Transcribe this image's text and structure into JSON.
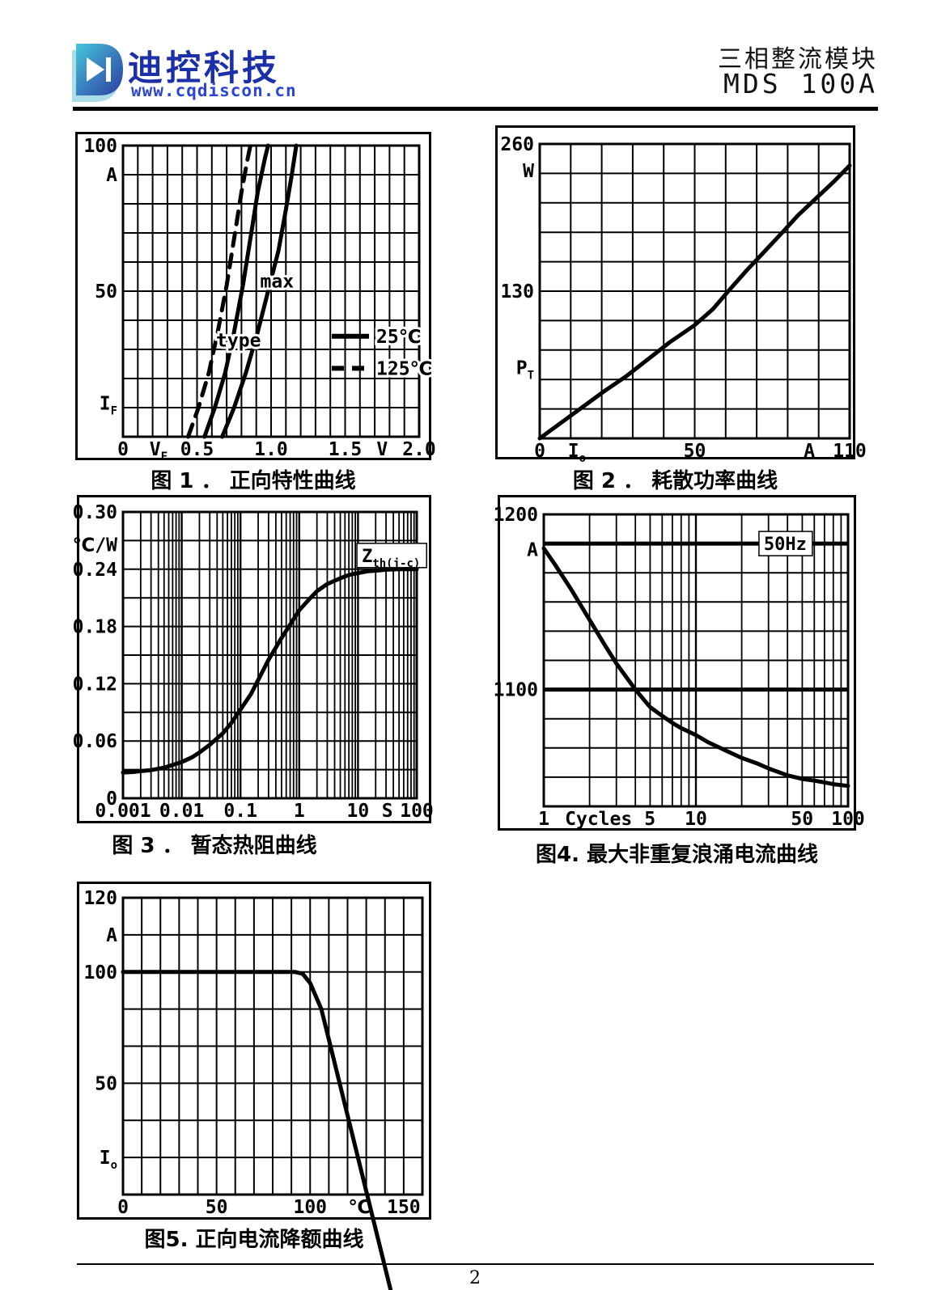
{
  "page": {
    "number": "2"
  },
  "header": {
    "brand": "迪控科技",
    "website": "www.cqdiscon.cn",
    "product_line1": "三相整流模块",
    "product_line2": "MDS 100A",
    "brand_color": "#1b2fa8",
    "website_color": "#2b45d4",
    "logo_icon": "diode-d-logo",
    "logo_gradient": [
      "#45c8da",
      "#2b3f9e"
    ]
  },
  "chart_data": [
    {
      "id": "fig1",
      "type": "line",
      "title": "图 1 ．  正向特性曲线",
      "xlabel": "VF (V)",
      "ylabel": "IF (A)",
      "xscale": "linear",
      "xlim": [
        0,
        2.0
      ],
      "ylim": [
        0,
        100
      ],
      "xmap": [
        [
          0,
          0
        ],
        [
          2,
          1
        ]
      ],
      "ymap": [
        [
          100,
          0
        ],
        [
          50,
          0.5
        ],
        [
          0,
          1
        ]
      ],
      "grid": {
        "xdiv": 20,
        "ydiv": 10
      },
      "xticks": [
        {
          "t": "0",
          "f": 0
        },
        {
          "t": "V",
          "s": "F",
          "f": 0.12
        },
        {
          "t": "0.5",
          "f": 0.25
        },
        {
          "t": "1.0",
          "f": 0.5
        },
        {
          "t": "1.5",
          "f": 0.75
        },
        {
          "t": "V",
          "f": 0.875
        },
        {
          "t": "2.0",
          "f": 1.0
        }
      ],
      "yticks": [
        {
          "t": "100",
          "f": 0
        },
        {
          "t": "A",
          "f": 0.1
        },
        {
          "t": "50",
          "f": 0.5
        },
        {
          "t": "I",
          "s": "F",
          "f": 0.885
        }
      ],
      "series": [
        {
          "name": "125℃",
          "dash": true,
          "points": [
            [
              0.44,
              0
            ],
            [
              0.51,
              10
            ],
            [
              0.58,
              22
            ],
            [
              0.64,
              36
            ],
            [
              0.7,
              52
            ],
            [
              0.75,
              68
            ],
            [
              0.8,
              84
            ],
            [
              0.84,
              95
            ],
            [
              0.86,
              100
            ]
          ]
        },
        {
          "name": "25℃ type",
          "dash": false,
          "points": [
            [
              0.55,
              0
            ],
            [
              0.62,
              10
            ],
            [
              0.69,
              22
            ],
            [
              0.75,
              36
            ],
            [
              0.81,
              52
            ],
            [
              0.86,
              68
            ],
            [
              0.91,
              84
            ],
            [
              0.96,
              96
            ],
            [
              0.98,
              100
            ]
          ]
        },
        {
          "name": "25℃ max",
          "dash": false,
          "points": [
            [
              0.67,
              0
            ],
            [
              0.75,
              10
            ],
            [
              0.83,
              22
            ],
            [
              0.91,
              36
            ],
            [
              0.98,
              50
            ],
            [
              1.05,
              64
            ],
            [
              1.1,
              78
            ],
            [
              1.14,
              90
            ],
            [
              1.17,
              100
            ]
          ]
        }
      ],
      "legend": {
        "fx": 0.705,
        "fy": 0.655,
        "step": 0.11,
        "entries": [
          {
            "label": "25℃",
            "dash": false
          },
          {
            "label": "125℃",
            "dash": true
          }
        ]
      },
      "annotations": [
        {
          "t": "max",
          "fx": 0.52,
          "fy": 0.465,
          "boxed": false
        },
        {
          "t": "type",
          "fx": 0.39,
          "fy": 0.668,
          "boxed": false
        }
      ]
    },
    {
      "id": "fig2",
      "type": "line",
      "title": "图 2 ．  耗散功率曲线",
      "xlabel": "Io (A)",
      "ylabel": "PT (W)",
      "xscale": "linear",
      "xlim": [
        0,
        110
      ],
      "ylim": [
        0,
        260
      ],
      "xmap": [
        [
          0,
          0
        ],
        [
          50,
          0.5
        ],
        [
          110,
          1
        ]
      ],
      "ymap": [
        [
          260,
          0
        ],
        [
          130,
          0.5
        ],
        [
          0,
          1
        ]
      ],
      "grid": {
        "xdiv": 10,
        "ydiv": 10
      },
      "xticks": [
        {
          "t": "0",
          "f": 0
        },
        {
          "t": "I",
          "s": "o",
          "f": 0.12
        },
        {
          "t": "50",
          "f": 0.5
        },
        {
          "t": "A",
          "f": 0.87
        },
        {
          "t": "110",
          "f": 1.0
        }
      ],
      "yticks": [
        {
          "t": "260",
          "f": 0
        },
        {
          "t": "W",
          "f": 0.09
        },
        {
          "t": "130",
          "f": 0.5
        },
        {
          "t": "P",
          "s": "T",
          "f": 0.76
        }
      ],
      "series": [
        {
          "name": "PT",
          "dash": false,
          "points": [
            [
              0,
              0
            ],
            [
              7,
              14
            ],
            [
              14,
              28
            ],
            [
              21,
              42
            ],
            [
              28,
              55
            ],
            [
              35,
              70
            ],
            [
              42,
              85
            ],
            [
              50,
              100
            ],
            [
              57,
              114
            ],
            [
              63,
              130
            ],
            [
              70,
              148
            ],
            [
              77,
              165
            ],
            [
              84,
              182
            ],
            [
              90,
              197
            ],
            [
              97,
              212
            ],
            [
              104,
              227
            ],
            [
              110,
              241
            ]
          ]
        }
      ]
    },
    {
      "id": "fig3",
      "type": "line",
      "title": "图 3 ．  暂态热阻曲线",
      "xlabel": "t (S)",
      "ylabel": "Zth(j-c) (℃/W)",
      "xscale": "log",
      "xlim": [
        0.001,
        100
      ],
      "ylim": [
        0,
        0.3
      ],
      "xmap": [
        [
          0.001,
          0
        ],
        [
          100,
          1
        ]
      ],
      "ymap": [
        [
          0.3,
          0
        ],
        [
          0,
          1
        ]
      ],
      "grid": {
        "xlog": {
          "min": 0.001,
          "max": 100
        },
        "ydiv": 10
      },
      "xticks": [
        {
          "t": "0.001",
          "f": 0
        },
        {
          "t": "0.01",
          "f": 0.2
        },
        {
          "t": "0.1",
          "f": 0.4
        },
        {
          "t": "1",
          "f": 0.6
        },
        {
          "t": "10",
          "f": 0.8
        },
        {
          "t": "S",
          "f": 0.9
        },
        {
          "t": "100",
          "f": 1.0
        }
      ],
      "yticks": [
        {
          "t": "0.30",
          "f": 0
        },
        {
          "t": "℃/W",
          "f": 0.115
        },
        {
          "t": "0.24",
          "f": 0.2
        },
        {
          "t": "0.18",
          "f": 0.4
        },
        {
          "t": "0.12",
          "f": 0.6
        },
        {
          "t": "0.06",
          "f": 0.8
        },
        {
          "t": "0",
          "f": 1.0
        }
      ],
      "series": [
        {
          "name": "Zth(j-c)",
          "dash": false,
          "points": [
            [
              0.001,
              0.027
            ],
            [
              0.0015,
              0.0275
            ],
            [
              0.002,
              0.0285
            ],
            [
              0.003,
              0.0295
            ],
            [
              0.005,
              0.032
            ],
            [
              0.007,
              0.035
            ],
            [
              0.01,
              0.038
            ],
            [
              0.015,
              0.043
            ],
            [
              0.02,
              0.048
            ],
            [
              0.03,
              0.056
            ],
            [
              0.05,
              0.068
            ],
            [
              0.07,
              0.079
            ],
            [
              0.1,
              0.093
            ],
            [
              0.15,
              0.109
            ],
            [
              0.2,
              0.124
            ],
            [
              0.3,
              0.145
            ],
            [
              0.5,
              0.168
            ],
            [
              0.7,
              0.182
            ],
            [
              1,
              0.197
            ],
            [
              1.5,
              0.209
            ],
            [
              2,
              0.217
            ],
            [
              3,
              0.2245
            ],
            [
              5,
              0.2305
            ],
            [
              7,
              0.234
            ],
            [
              10,
              0.236
            ],
            [
              15,
              0.238
            ],
            [
              20,
              0.2385
            ],
            [
              30,
              0.2395
            ],
            [
              50,
              0.24
            ],
            [
              100,
              0.24
            ]
          ]
        }
      ],
      "annotations": [
        {
          "t": "Z",
          "s": "th(j-c)",
          "fx": 0.915,
          "fy": 0.152,
          "boxed": true
        }
      ]
    },
    {
      "id": "fig4",
      "type": "line",
      "title": "图4.   最大非重复浪涌电流曲线",
      "xlabel": "Cycles",
      "ylabel": "IFSM (A)",
      "xscale": "log",
      "xlim": [
        1,
        100
      ],
      "ylim": [
        1033,
        1200
      ],
      "xmap": [
        [
          1,
          0
        ],
        [
          100,
          1
        ]
      ],
      "ymap": [
        [
          1200,
          0
        ],
        [
          1100,
          0.6
        ],
        [
          1033,
          1
        ]
      ],
      "grid": {
        "xlog": {
          "min": 1,
          "max": 100
        },
        "ydiv": 10,
        "thick_h": [
          0.1,
          0.6
        ]
      },
      "xticks": [
        {
          "t": "1",
          "f": 0
        },
        {
          "t": "Cycles",
          "f": 0.18
        },
        {
          "t": "5",
          "f": 0.349
        },
        {
          "t": "10",
          "f": 0.5
        },
        {
          "t": "50",
          "f": 0.849
        },
        {
          "t": "100",
          "f": 1.0
        }
      ],
      "yticks": [
        {
          "t": "1200",
          "f": 0
        },
        {
          "t": "A",
          "f": 0.12
        },
        {
          "t": "1100",
          "f": 0.6
        }
      ],
      "series": [
        {
          "name": "50Hz surge",
          "dash": false,
          "points": [
            [
              1,
              1181
            ],
            [
              1.2,
              1171
            ],
            [
              1.5,
              1158
            ],
            [
              2,
              1140
            ],
            [
              2.5,
              1126
            ],
            [
              3,
              1115
            ],
            [
              4,
              1100
            ],
            [
              5,
              1090
            ],
            [
              6,
              1085
            ],
            [
              7,
              1081
            ],
            [
              8,
              1078
            ],
            [
              10,
              1074
            ],
            [
              12,
              1070
            ],
            [
              15,
              1066
            ],
            [
              20,
              1061
            ],
            [
              25,
              1058
            ],
            [
              30,
              1055
            ],
            [
              40,
              1051
            ],
            [
              50,
              1049
            ],
            [
              60,
              1048
            ],
            [
              70,
              1047
            ],
            [
              80,
              1046
            ],
            [
              100,
              1045
            ]
          ]
        }
      ],
      "annotations": [
        {
          "t": "50Hz",
          "fx": 0.795,
          "fy": 0.1,
          "boxed": true
        }
      ]
    },
    {
      "id": "fig5",
      "type": "line",
      "title": "图5.   正向电流降额曲线",
      "xlabel": "Tc (℃)",
      "ylabel": "Io (A)",
      "xscale": "linear",
      "xlim": [
        0,
        160
      ],
      "ylim": [
        0,
        120
      ],
      "xmap": [
        [
          0,
          0
        ],
        [
          160,
          1
        ]
      ],
      "ymap": [
        [
          120,
          0
        ],
        [
          100,
          0.25
        ],
        [
          50,
          0.625
        ],
        [
          0,
          1
        ]
      ],
      "grid": {
        "xdiv": 16,
        "ydiv": 8
      },
      "xticks": [
        {
          "t": "0",
          "f": 0
        },
        {
          "t": "50",
          "f": 0.3125
        },
        {
          "t": "100",
          "f": 0.625
        },
        {
          "t": "℃",
          "f": 0.79
        },
        {
          "t": "150",
          "f": 0.9375
        }
      ],
      "yticks": [
        {
          "t": "120",
          "f": 0
        },
        {
          "t": "A",
          "f": 0.125
        },
        {
          "t": "100",
          "f": 0.25
        },
        {
          "t": "50",
          "f": 0.625
        },
        {
          "t": "I",
          "s": "o",
          "f": 0.875
        }
      ],
      "series": [
        {
          "name": "Io derating",
          "dash": false,
          "points": [
            [
              0,
              100
            ],
            [
              92,
              100
            ],
            [
              96,
              99.5
            ],
            [
              100,
              97
            ],
            [
              106,
              90
            ],
            [
              150,
              0
            ]
          ]
        }
      ]
    }
  ]
}
